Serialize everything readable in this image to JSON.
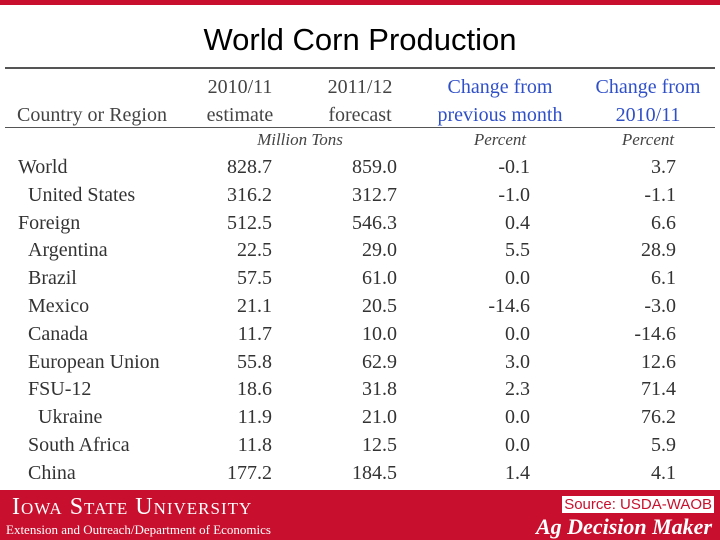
{
  "header": {
    "title": "World Corn Production"
  },
  "table": {
    "columns": [
      [
        "Country or Region"
      ],
      [
        "2010/11",
        "estimate"
      ],
      [
        "2011/12",
        "forecast"
      ],
      [
        "Change from",
        "previous month"
      ],
      [
        "Change from",
        "2010/11"
      ]
    ],
    "units": [
      "Million Tons",
      "Percent",
      "Percent"
    ],
    "rows": [
      [
        "World",
        "828.7",
        "859.0",
        "-0.1",
        "3.7"
      ],
      [
        "United States",
        "316.2",
        "312.7",
        "-1.0",
        "-1.1"
      ],
      [
        "Foreign",
        "512.5",
        "546.3",
        "0.4",
        "6.6"
      ],
      [
        "Argentina",
        "22.5",
        "29.0",
        "5.5",
        "28.9"
      ],
      [
        "Brazil",
        "57.5",
        "61.0",
        "0.0",
        "6.1"
      ],
      [
        "Mexico",
        "21.1",
        "20.5",
        "-14.6",
        "-3.0"
      ],
      [
        "Canada",
        "11.7",
        "10.0",
        "0.0",
        "-14.6"
      ],
      [
        "European Union",
        "55.8",
        "62.9",
        "3.0",
        "12.6"
      ],
      [
        "FSU-12",
        "18.6",
        "31.8",
        "2.3",
        "71.4"
      ],
      [
        "Ukraine",
        "11.9",
        "21.0",
        "0.0",
        "76.2"
      ],
      [
        "South Africa",
        "11.8",
        "12.5",
        "0.0",
        "5.9"
      ],
      [
        "China",
        "177.2",
        "184.5",
        "1.4",
        "4.1"
      ]
    ]
  },
  "footer": {
    "university": "Iowa State University",
    "department": "Extension and Outreach/Department of Economics",
    "source": "Source: USDA-WAOB",
    "brand": "Ag Decision Maker"
  }
}
